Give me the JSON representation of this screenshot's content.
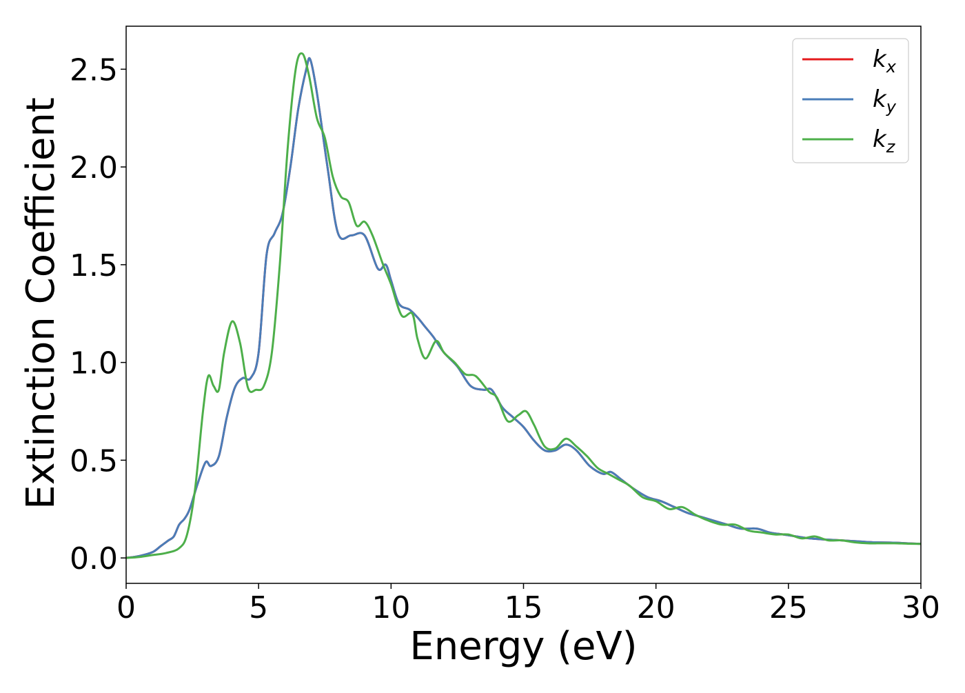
{
  "chart_data": {
    "type": "line",
    "xlabel": "Energy (eV)",
    "ylabel": "Extinction Coefficient",
    "xlim": [
      0,
      30
    ],
    "ylim": [
      -0.13,
      2.72
    ],
    "xticks": [
      0,
      5,
      10,
      15,
      20,
      25,
      30
    ],
    "yticks": [
      0.0,
      0.5,
      1.0,
      1.5,
      2.0,
      2.5
    ],
    "xtick_labels": [
      "0",
      "5",
      "10",
      "15",
      "20",
      "25",
      "30"
    ],
    "ytick_labels": [
      "0.0",
      "0.5",
      "1.0",
      "1.5",
      "2.0",
      "2.5"
    ],
    "grid": false,
    "legend_position": "top-right",
    "series": [
      {
        "name": "k_x",
        "label_main": "k",
        "label_sub": "x",
        "color": "#e41a1c",
        "x": [
          0,
          0.5,
          1.0,
          1.3,
          1.6,
          1.8,
          2.0,
          2.2,
          2.4,
          2.7,
          3.0,
          3.2,
          3.5,
          3.8,
          4.1,
          4.4,
          4.7,
          5.0,
          5.3,
          5.6,
          5.9,
          6.2,
          6.5,
          6.8,
          6.95,
          7.2,
          7.6,
          8.0,
          8.5,
          9.0,
          9.5,
          9.8,
          10.0,
          10.3,
          10.7,
          11.0,
          11.3,
          11.6,
          12.0,
          12.5,
          13.0,
          13.5,
          13.8,
          14.2,
          14.6,
          15.0,
          15.4,
          15.8,
          16.2,
          16.6,
          17.0,
          17.5,
          18.0,
          18.3,
          18.7,
          19.2,
          19.7,
          20.2,
          20.7,
          21.2,
          21.7,
          22.2,
          22.7,
          23.2,
          23.8,
          24.3,
          24.8,
          25.3,
          25.8,
          26.3,
          27.0,
          27.6,
          28.2,
          29.0,
          29.6,
          30.0
        ],
        "y": [
          0.0,
          0.01,
          0.03,
          0.06,
          0.09,
          0.11,
          0.17,
          0.2,
          0.25,
          0.38,
          0.49,
          0.47,
          0.52,
          0.72,
          0.87,
          0.92,
          0.92,
          1.05,
          1.55,
          1.66,
          1.76,
          2.0,
          2.3,
          2.5,
          2.55,
          2.38,
          2.0,
          1.66,
          1.65,
          1.65,
          1.48,
          1.5,
          1.42,
          1.3,
          1.27,
          1.23,
          1.18,
          1.13,
          1.05,
          0.98,
          0.88,
          0.86,
          0.86,
          0.77,
          0.72,
          0.67,
          0.6,
          0.55,
          0.55,
          0.58,
          0.55,
          0.47,
          0.43,
          0.44,
          0.4,
          0.35,
          0.31,
          0.29,
          0.26,
          0.23,
          0.21,
          0.19,
          0.17,
          0.15,
          0.15,
          0.13,
          0.12,
          0.11,
          0.1,
          0.095,
          0.09,
          0.085,
          0.08,
          0.078,
          0.074,
          0.072
        ]
      },
      {
        "name": "k_y",
        "label_main": "k",
        "label_sub": "y",
        "color": "#4a7db8",
        "x": [
          0,
          0.5,
          1.0,
          1.3,
          1.6,
          1.8,
          2.0,
          2.2,
          2.4,
          2.7,
          3.0,
          3.2,
          3.5,
          3.8,
          4.1,
          4.4,
          4.7,
          5.0,
          5.3,
          5.6,
          5.9,
          6.2,
          6.5,
          6.8,
          6.95,
          7.2,
          7.6,
          8.0,
          8.5,
          9.0,
          9.5,
          9.8,
          10.0,
          10.3,
          10.7,
          11.0,
          11.3,
          11.6,
          12.0,
          12.5,
          13.0,
          13.5,
          13.8,
          14.2,
          14.6,
          15.0,
          15.4,
          15.8,
          16.2,
          16.6,
          17.0,
          17.5,
          18.0,
          18.3,
          18.7,
          19.2,
          19.7,
          20.2,
          20.7,
          21.2,
          21.7,
          22.2,
          22.7,
          23.2,
          23.8,
          24.3,
          24.8,
          25.3,
          25.8,
          26.3,
          27.0,
          27.6,
          28.2,
          29.0,
          29.6,
          30.0
        ],
        "y": [
          0.0,
          0.01,
          0.03,
          0.06,
          0.09,
          0.11,
          0.17,
          0.2,
          0.25,
          0.38,
          0.49,
          0.47,
          0.52,
          0.72,
          0.87,
          0.92,
          0.92,
          1.05,
          1.55,
          1.66,
          1.76,
          2.0,
          2.3,
          2.5,
          2.55,
          2.38,
          2.0,
          1.66,
          1.65,
          1.65,
          1.48,
          1.5,
          1.42,
          1.3,
          1.27,
          1.23,
          1.18,
          1.13,
          1.05,
          0.98,
          0.88,
          0.86,
          0.86,
          0.77,
          0.72,
          0.67,
          0.6,
          0.55,
          0.55,
          0.58,
          0.55,
          0.47,
          0.43,
          0.44,
          0.4,
          0.35,
          0.31,
          0.29,
          0.26,
          0.23,
          0.21,
          0.19,
          0.17,
          0.15,
          0.15,
          0.13,
          0.12,
          0.11,
          0.1,
          0.095,
          0.09,
          0.085,
          0.08,
          0.078,
          0.074,
          0.072
        ]
      },
      {
        "name": "k_z",
        "label_main": "k",
        "label_sub": "z",
        "color": "#4daf4a",
        "x": [
          0,
          0.5,
          1.0,
          1.5,
          2.0,
          2.3,
          2.6,
          2.9,
          3.1,
          3.3,
          3.5,
          3.7,
          4.0,
          4.3,
          4.6,
          4.9,
          5.2,
          5.5,
          5.8,
          6.1,
          6.4,
          6.65,
          6.9,
          7.2,
          7.5,
          7.8,
          8.1,
          8.4,
          8.7,
          9.0,
          9.3,
          9.7,
          10.0,
          10.4,
          10.8,
          11.0,
          11.3,
          11.7,
          12.0,
          12.4,
          12.8,
          13.2,
          13.7,
          14.0,
          14.4,
          14.8,
          15.1,
          15.4,
          15.8,
          16.2,
          16.6,
          17.0,
          17.4,
          17.8,
          18.2,
          18.6,
          19.0,
          19.5,
          20.0,
          20.5,
          21.0,
          21.5,
          22.0,
          22.5,
          23.0,
          23.5,
          24.0,
          24.5,
          25.0,
          25.5,
          26.0,
          26.5,
          27.0,
          27.5,
          28.0,
          28.5,
          29.0,
          29.5,
          30.0
        ],
        "y": [
          0.0,
          0.005,
          0.015,
          0.025,
          0.05,
          0.12,
          0.35,
          0.75,
          0.93,
          0.88,
          0.86,
          1.05,
          1.21,
          1.1,
          0.87,
          0.86,
          0.88,
          1.05,
          1.5,
          2.1,
          2.5,
          2.58,
          2.47,
          2.25,
          2.15,
          1.95,
          1.85,
          1.82,
          1.7,
          1.72,
          1.65,
          1.5,
          1.4,
          1.24,
          1.25,
          1.12,
          1.02,
          1.11,
          1.05,
          1.0,
          0.94,
          0.93,
          0.85,
          0.82,
          0.7,
          0.73,
          0.75,
          0.68,
          0.57,
          0.56,
          0.61,
          0.57,
          0.52,
          0.46,
          0.43,
          0.4,
          0.37,
          0.31,
          0.29,
          0.25,
          0.26,
          0.22,
          0.19,
          0.17,
          0.17,
          0.14,
          0.13,
          0.12,
          0.12,
          0.1,
          0.11,
          0.09,
          0.09,
          0.08,
          0.075,
          0.075,
          0.075,
          0.073,
          0.072
        ]
      }
    ]
  }
}
